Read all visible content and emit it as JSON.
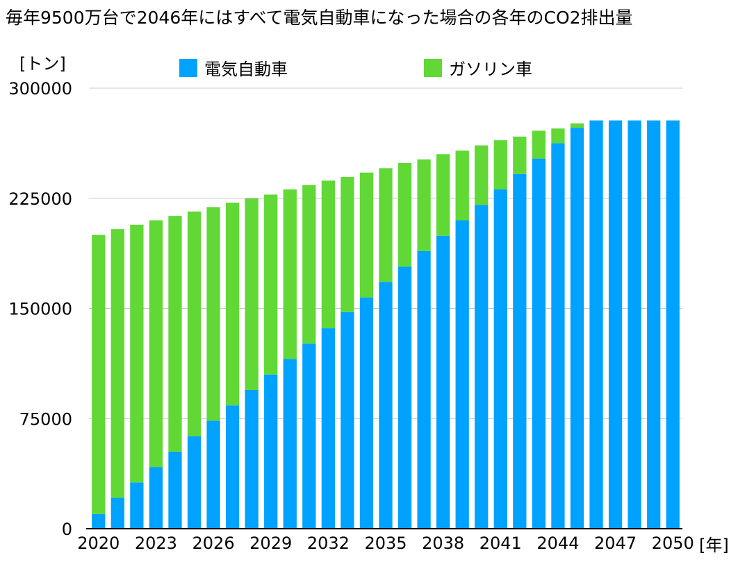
{
  "chart_data": {
    "type": "bar",
    "stacked": true,
    "title": "毎年9500万台で2046年にはすべて電気自動車になった場合の各年のCO2排出量",
    "ylabel": "[トン]",
    "xlabel": "[年]",
    "ylim": [
      0,
      300000
    ],
    "yticks": [
      "0",
      "75000",
      "150000",
      "225000",
      "300000"
    ],
    "grid": true,
    "legend_position": "top",
    "categories": [
      "2020",
      "2021",
      "2022",
      "2023",
      "2024",
      "2025",
      "2026",
      "2027",
      "2028",
      "2029",
      "2030",
      "2031",
      "2032",
      "2033",
      "2034",
      "2035",
      "2036",
      "2037",
      "2038",
      "2039",
      "2040",
      "2041",
      "2042",
      "2043",
      "2044",
      "2045",
      "2046",
      "2047",
      "2048",
      "2049",
      "2050"
    ],
    "xtick_labels": [
      "2020",
      "",
      "",
      "2023",
      "",
      "",
      "2026",
      "",
      "",
      "2029",
      "",
      "",
      "2032",
      "",
      "",
      "2035",
      "",
      "",
      "2038",
      "",
      "",
      "2041",
      "",
      "",
      "2044",
      "",
      "",
      "2047",
      "",
      "",
      "2050"
    ],
    "series": [
      {
        "name": "電気自動車",
        "color": "#00a2ff",
        "values": [
          10000,
          21000,
          31500,
          42000,
          52500,
          63000,
          73500,
          84000,
          94500,
          105000,
          115500,
          126000,
          136500,
          147500,
          157500,
          168000,
          178500,
          189000,
          199500,
          210000,
          220500,
          231000,
          241500,
          252000,
          262500,
          273000,
          278000,
          278000,
          278000,
          278000,
          278000
        ]
      },
      {
        "name": "ガソリン車",
        "color": "#61d836",
        "values": [
          190000,
          183000,
          175500,
          168000,
          160500,
          153000,
          145500,
          138000,
          130500,
          122500,
          115500,
          108000,
          100500,
          92000,
          85000,
          77500,
          70500,
          62500,
          55500,
          47500,
          40500,
          33500,
          25500,
          19000,
          10000,
          3000,
          0,
          0,
          0,
          0,
          0
        ]
      }
    ]
  }
}
